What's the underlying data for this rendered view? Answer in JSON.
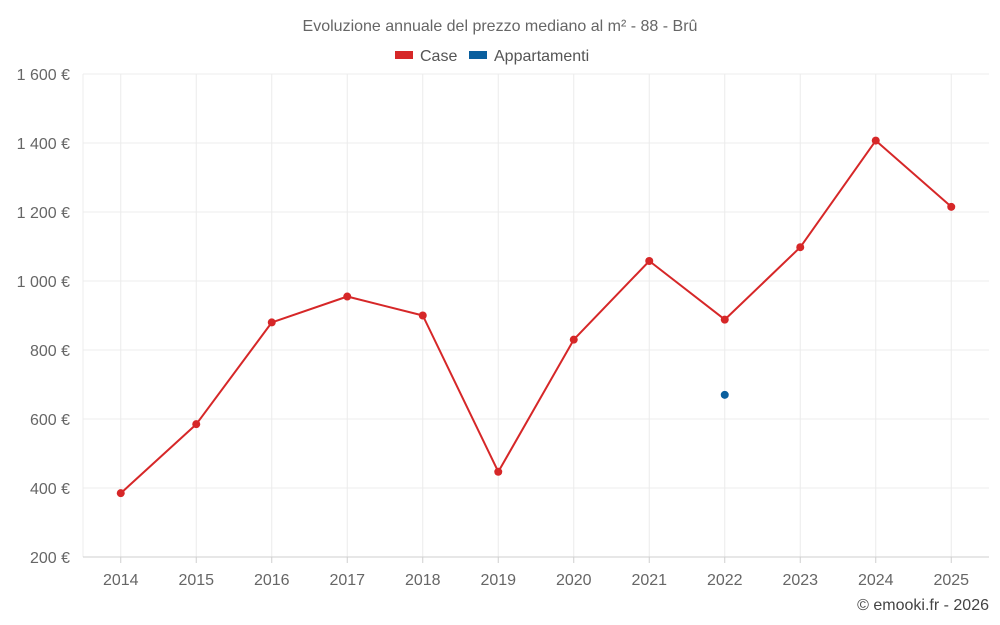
{
  "chart_data": {
    "type": "line",
    "title": "Evoluzione annuale del prezzo mediano al m² - 88 - Brû",
    "categories": [
      "2014",
      "2015",
      "2016",
      "2017",
      "2018",
      "2019",
      "2020",
      "2021",
      "2022",
      "2023",
      "2024",
      "2025"
    ],
    "series": [
      {
        "name": "Case",
        "color": "#d62728",
        "values": [
          385,
          585,
          880,
          955,
          900,
          447,
          830,
          1058,
          888,
          1098,
          1407,
          1215
        ]
      },
      {
        "name": "Appartamenti",
        "color": "#0a5f9e",
        "values": [
          null,
          null,
          null,
          null,
          null,
          null,
          null,
          null,
          670,
          null,
          null,
          null
        ]
      }
    ],
    "ylim": [
      200,
      1600
    ],
    "yticks": [
      200,
      400,
      600,
      800,
      1000,
      1200,
      1400,
      1600
    ],
    "ytick_labels": [
      "200 €",
      "400 €",
      "600 €",
      "800 €",
      "1 000 €",
      "1 200 €",
      "1 400 €",
      "1 600 €"
    ],
    "xlabel": "",
    "ylabel": "",
    "legend_position": "top-center",
    "grid": true
  },
  "credit": "© emooki.fr - 2026"
}
